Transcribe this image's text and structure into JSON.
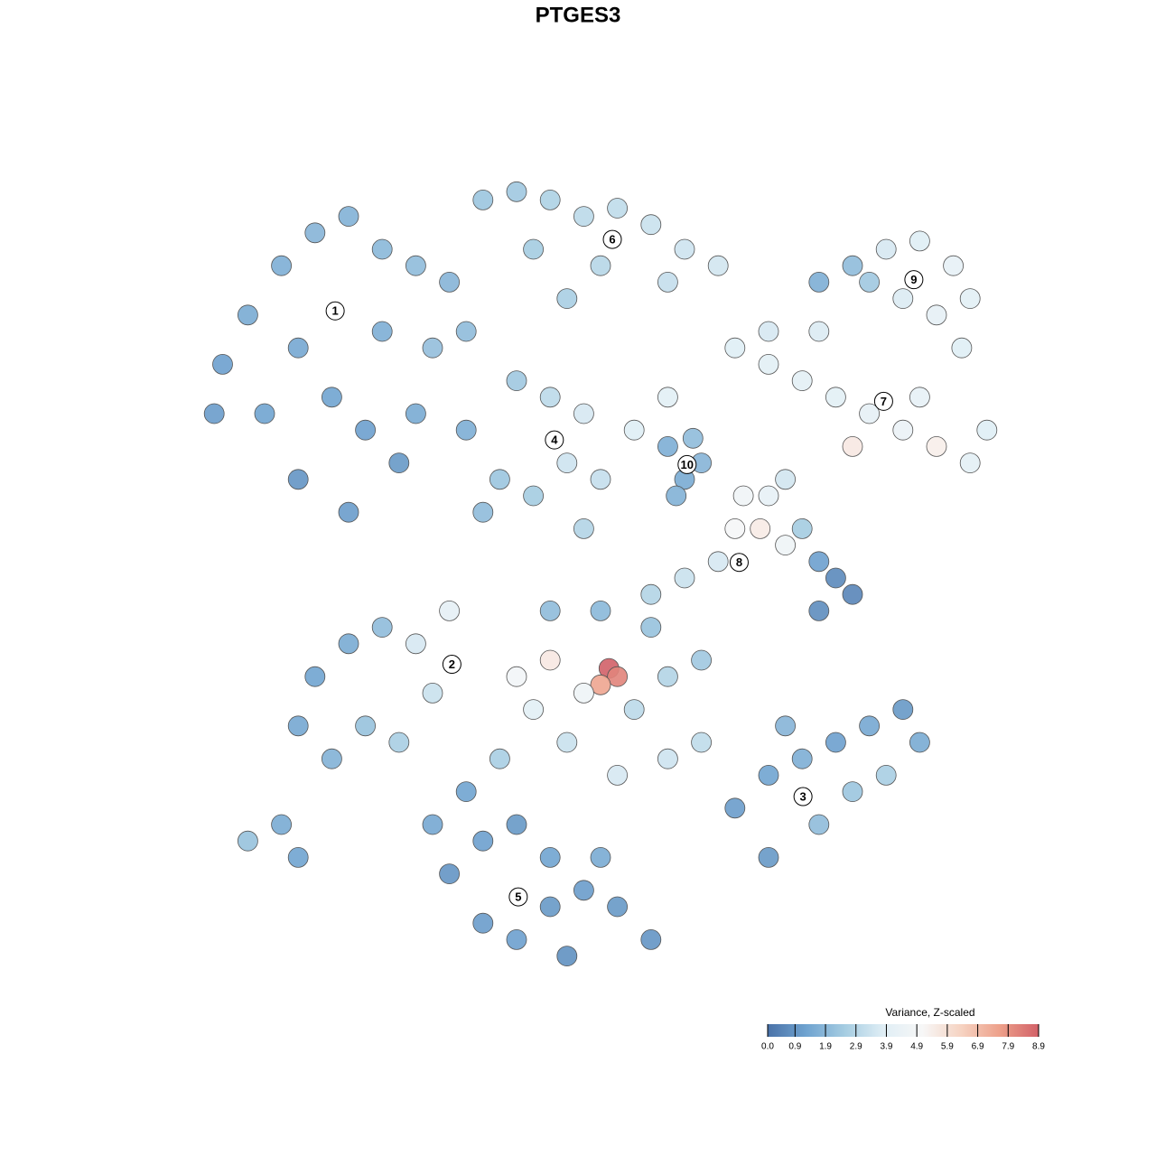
{
  "chart_data": {
    "type": "scatter",
    "title": "PTGES3",
    "xlim": [
      0,
      100
    ],
    "ylim": [
      0,
      100
    ],
    "x": [
      5,
      8,
      12,
      16,
      20,
      24,
      28,
      32,
      14,
      18,
      22,
      26,
      14,
      20,
      30,
      34,
      10,
      24,
      4,
      28,
      36,
      40,
      44,
      48,
      52,
      56,
      60,
      64,
      42,
      50,
      58,
      46,
      76,
      80,
      84,
      88,
      92,
      94,
      90,
      86,
      93,
      82,
      66,
      70,
      74,
      78,
      82,
      86,
      90,
      94,
      88,
      80,
      76,
      70,
      96,
      34,
      38,
      42,
      46,
      48,
      44,
      40,
      36,
      50,
      54,
      58,
      48,
      58,
      60,
      62,
      59,
      61,
      67,
      69,
      70,
      72,
      74,
      76,
      78,
      80,
      76,
      64,
      60,
      56,
      66,
      72,
      16,
      20,
      24,
      28,
      32,
      30,
      22,
      14,
      18,
      26,
      8,
      14,
      12,
      40,
      44,
      51,
      52,
      50,
      48,
      42,
      46,
      54,
      58,
      62,
      56,
      50,
      44,
      52,
      58,
      62,
      38,
      66,
      70,
      74,
      78,
      82,
      86,
      88,
      80,
      76,
      70,
      84,
      72,
      32,
      36,
      40,
      44,
      48,
      52,
      56,
      46,
      40,
      36,
      30,
      44,
      50,
      34
    ],
    "y": [
      76,
      82,
      88,
      92,
      94,
      90,
      88,
      86,
      78,
      72,
      68,
      64,
      62,
      58,
      78,
      80,
      70,
      80,
      70,
      70,
      96,
      97,
      96,
      94,
      95,
      93,
      90,
      88,
      90,
      88,
      86,
      84,
      86,
      88,
      90,
      91,
      88,
      84,
      82,
      84,
      78,
      86,
      78,
      76,
      74,
      72,
      70,
      68,
      66,
      64,
      72,
      66,
      80,
      80,
      68,
      68,
      62,
      60,
      64,
      70,
      72,
      74,
      58,
      62,
      68,
      72,
      56,
      66,
      62,
      64,
      60,
      67,
      60,
      56,
      60,
      62,
      56,
      52,
      50,
      48,
      46,
      52,
      50,
      48,
      56,
      54,
      38,
      42,
      44,
      42,
      46,
      36,
      32,
      32,
      28,
      30,
      18,
      16,
      20,
      38,
      40,
      39,
      38,
      37,
      36,
      34,
      30,
      34,
      38,
      40,
      44,
      46,
      46,
      26,
      28,
      30,
      28,
      22,
      26,
      28,
      30,
      32,
      34,
      30,
      24,
      20,
      16,
      26,
      32,
      14,
      18,
      20,
      16,
      12,
      10,
      6,
      4,
      6,
      8,
      20,
      10,
      16,
      24
    ],
    "values": [
      1.2,
      1.5,
      1.6,
      1.8,
      1.7,
      1.9,
      2.0,
      1.8,
      1.4,
      1.3,
      1.2,
      1.0,
      0.9,
      1.1,
      2.1,
      2.0,
      1.3,
      1.6,
      1.1,
      1.5,
      2.3,
      2.4,
      2.7,
      3.0,
      3.1,
      3.3,
      3.4,
      3.5,
      2.5,
      2.9,
      3.2,
      2.6,
      1.6,
      2.0,
      3.6,
      3.8,
      4.2,
      3.9,
      4.1,
      3.7,
      3.8,
      2.4,
      3.8,
      3.9,
      4.0,
      3.9,
      4.1,
      4.4,
      5.4,
      4.0,
      4.2,
      5.6,
      3.7,
      3.6,
      3.8,
      1.6,
      2.3,
      2.5,
      3.4,
      3.6,
      3.0,
      2.4,
      2.0,
      3.2,
      3.8,
      3.9,
      2.8,
      1.6,
      1.5,
      1.8,
      1.7,
      2.0,
      4.7,
      5.5,
      4.2,
      3.5,
      2.5,
      1.2,
      0.6,
      0.5,
      0.7,
      3.6,
      3.3,
      2.8,
      5.0,
      4.6,
      1.3,
      1.5,
      2.0,
      3.6,
      4.1,
      3.3,
      2.2,
      1.4,
      1.7,
      2.6,
      2.2,
      1.3,
      1.5,
      4.8,
      5.6,
      8.9,
      8.2,
      7.5,
      4.6,
      3.9,
      3.3,
      3.0,
      2.8,
      2.4,
      2.2,
      1.9,
      2.0,
      3.6,
      3.4,
      3.1,
      2.6,
      1.1,
      1.3,
      1.6,
      1.2,
      1.4,
      1.0,
      1.5,
      2.3,
      2.0,
      1.0,
      2.6,
      1.8,
      0.9,
      1.2,
      1.0,
      1.3,
      1.1,
      1.0,
      0.9,
      0.8,
      1.2,
      1.1,
      1.4,
      1.0,
      1.5,
      1.3
    ],
    "cluster_labels": {
      "labels": [
        "1",
        "6",
        "9",
        "7",
        "4",
        "10",
        "8",
        "2",
        "3",
        "5"
      ],
      "x": [
        18.4,
        51.4,
        87.3,
        83.7,
        44.5,
        60.3,
        66.5,
        32.3,
        74.1,
        40.2
      ],
      "y": [
        82.5,
        91.2,
        86.3,
        71.5,
        66.8,
        63.8,
        51.9,
        39.5,
        23.4,
        11.2
      ]
    },
    "colorbar": {
      "title": "Variance, Z-scaled",
      "clim": [
        0,
        8.9
      ],
      "colors": [
        "#4a72a8",
        "#6fa3d0",
        "#a6cde2",
        "#e0eef5",
        "#f7f7f7",
        "#f6d3c2",
        "#eda08a",
        "#d26168"
      ],
      "ticks": [
        {
          "value": 0,
          "label": "0.0"
        },
        0.9,
        1.9,
        2.9,
        3.9,
        4.9,
        5.9,
        6.9,
        7.9,
        8.9
      ]
    }
  }
}
